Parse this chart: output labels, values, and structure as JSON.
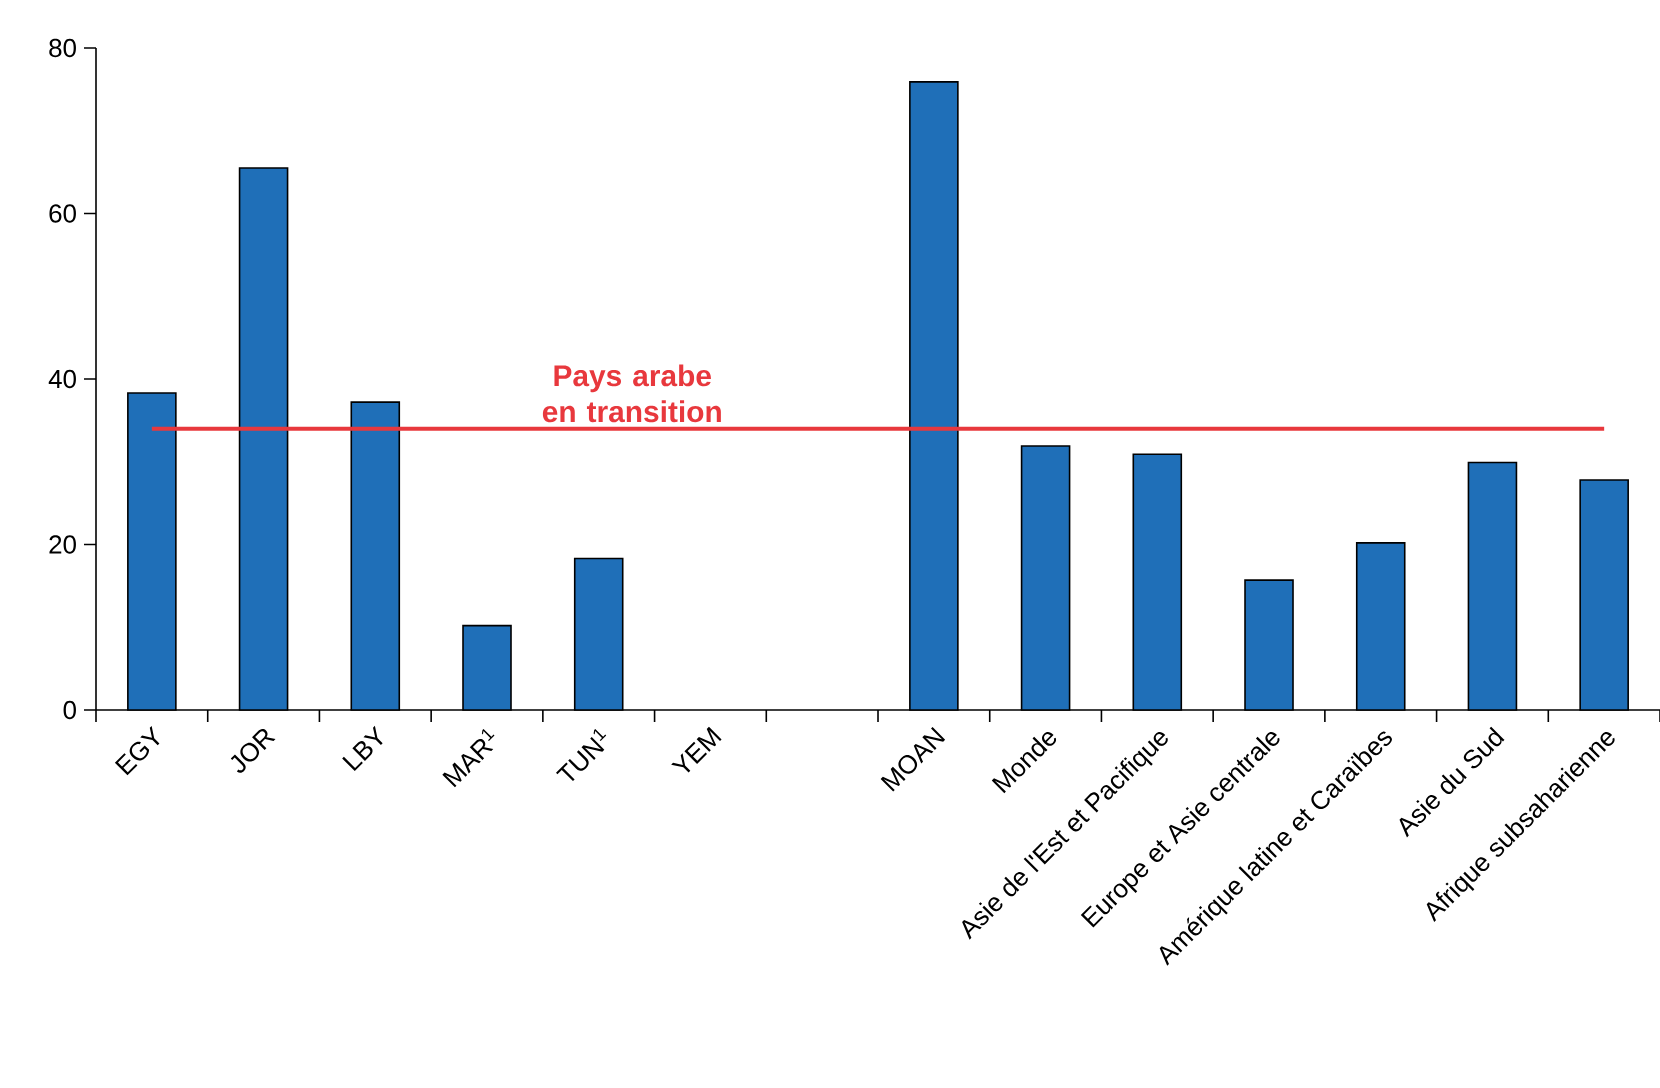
{
  "chart_data": {
    "type": "bar",
    "categories": [
      "EGY",
      "JOR",
      "LBY",
      "MAR$^{1}$",
      "TUN$^{1}$",
      "YEM",
      null,
      "MOAN",
      "Monde",
      "Asie de l'Est et Pacifique",
      "Europe et Asie centrale",
      "Amérique latine et Caraïbes",
      "Asie du Sud",
      "Afrique subsaharienne"
    ],
    "values": [
      38.3,
      65.5,
      37.2,
      10.2,
      18.3,
      null,
      null,
      75.9,
      31.9,
      30.9,
      15.7,
      20.2,
      29.9,
      27.8
    ],
    "color": "#1f6fb8",
    "ylim": [
      0,
      80
    ],
    "yticks": [
      0,
      20,
      40,
      60,
      80
    ],
    "ref_lines": [
      {
        "axis": "y",
        "value": 34,
        "label": "Pays arabe en transition",
        "color": "#e8383d"
      }
    ]
  }
}
